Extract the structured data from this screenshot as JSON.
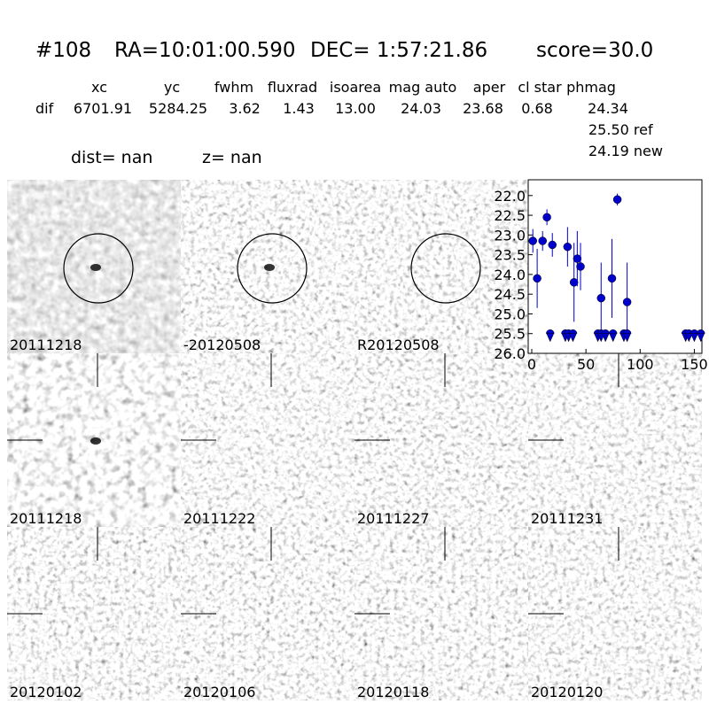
{
  "header": {
    "object": "#108",
    "ra": "RA=10:01:00.590",
    "dec": "DEC= 1:57:21.86",
    "score": "score=30.0"
  },
  "table": {
    "columns": [
      "xc",
      "yc",
      "fwhm",
      "fluxrad",
      "isoarea",
      "mag auto",
      "aper",
      "cl star",
      "phmag"
    ],
    "row_label": "dif",
    "values": [
      "6701.91",
      "5284.25",
      "3.62",
      "1.43",
      "13.00",
      "24.03",
      "23.68",
      "0.68",
      "24.34"
    ],
    "ref": "25.50 ref",
    "new": "24.19 new"
  },
  "dist": "dist=   nan",
  "z": "z=   nan",
  "stamps": [
    {
      "label": "20111218",
      "marker": "circle",
      "source": "strong"
    },
    {
      "label": "-20120508",
      "marker": "circle",
      "source": "strong"
    },
    {
      "label": "R20120508",
      "marker": "circle",
      "source": "none"
    },
    {
      "label": "20111218",
      "marker": "crosshair",
      "source": "strong",
      "label_color": "#ff0000"
    },
    {
      "label": "20111222",
      "marker": "crosshair",
      "source": "none"
    },
    {
      "label": "20111227",
      "marker": "crosshair",
      "source": "none"
    },
    {
      "label": "20111231",
      "marker": "crosshair",
      "source": "none"
    },
    {
      "label": "20120102",
      "marker": "crosshair",
      "source": "none"
    },
    {
      "label": "20120106",
      "marker": "crosshair",
      "source": "none"
    },
    {
      "label": "20120118",
      "marker": "crosshair",
      "source": "none"
    },
    {
      "label": "20120120",
      "marker": "crosshair",
      "source": "none"
    }
  ],
  "chart_data": {
    "type": "scatter",
    "color": "#0000cc",
    "xlim": [
      0,
      157
    ],
    "ylim": [
      26.0,
      21.6
    ],
    "inverted_y": true,
    "xticks": [
      0,
      50,
      100,
      150
    ],
    "yticks": [
      {
        "value": 22.0,
        "label": "22.0"
      },
      {
        "value": 22.5,
        "label": "22.5"
      },
      {
        "value": 23.0,
        "label": "23.0"
      },
      {
        "value": 23.5,
        "label": "23.5"
      },
      {
        "value": 24.0,
        "label": "24.0"
      },
      {
        "value": 24.5,
        "label": "24.5"
      },
      {
        "value": 25.0,
        "label": "25.0"
      },
      {
        "value": 25.5,
        "label": "25.5"
      },
      {
        "value": 26.0,
        "label": "26.0"
      }
    ],
    "x": [
      1,
      5,
      10,
      14,
      19,
      33,
      39,
      42,
      45,
      64,
      74,
      79,
      88
    ],
    "values": [
      23.15,
      24.1,
      23.15,
      22.55,
      23.25,
      23.3,
      24.2,
      23.6,
      23.8,
      24.6,
      24.1,
      22.1,
      24.7
    ],
    "errors": [
      0.3,
      0.75,
      0.25,
      0.2,
      0.3,
      0.5,
      1.0,
      0.7,
      0.6,
      0.9,
      1.0,
      0.15,
      1.0
    ],
    "limits_x": [
      17,
      31,
      34,
      38,
      61,
      64,
      68,
      75,
      85,
      88,
      142,
      145,
      150,
      156
    ],
    "limits_values": [
      25.5,
      25.5,
      25.5,
      25.5,
      25.5,
      25.5,
      25.5,
      25.5,
      25.5,
      25.5,
      25.5,
      25.5,
      25.5,
      25.5
    ]
  }
}
